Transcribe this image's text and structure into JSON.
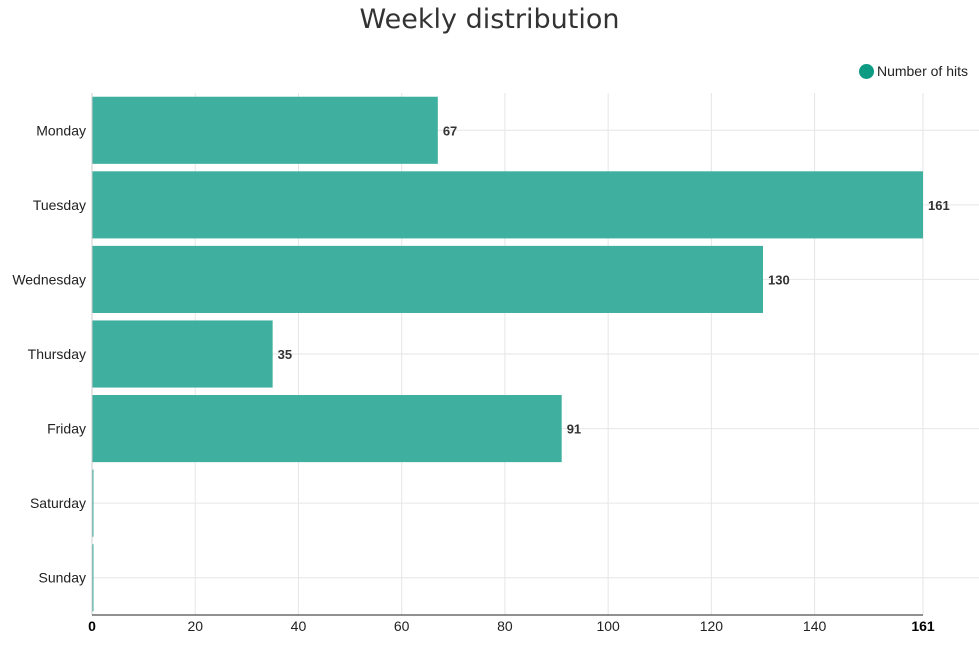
{
  "chart_data": {
    "type": "bar",
    "orientation": "horizontal",
    "title": "Weekly distribution",
    "categories": [
      "Monday",
      "Tuesday",
      "Wednesday",
      "Thursday",
      "Friday",
      "Saturday",
      "Sunday"
    ],
    "series": [
      {
        "name": "Number of hits",
        "values": [
          67,
          161,
          130,
          35,
          91,
          0,
          0
        ]
      }
    ],
    "value_labels": [
      "67",
      "161",
      "130",
      "35",
      "91",
      "",
      ""
    ],
    "xlim": [
      0,
      161
    ],
    "xticks": [
      0,
      20,
      40,
      60,
      80,
      100,
      120,
      140,
      161
    ],
    "xtick_labels": [
      "0",
      "20",
      "40",
      "60",
      "80",
      "100",
      "120",
      "140",
      "161"
    ],
    "grid": true,
    "legend_position": "top-right",
    "bar_color": "#3fb09f",
    "legend_color": "#0d9b84"
  }
}
